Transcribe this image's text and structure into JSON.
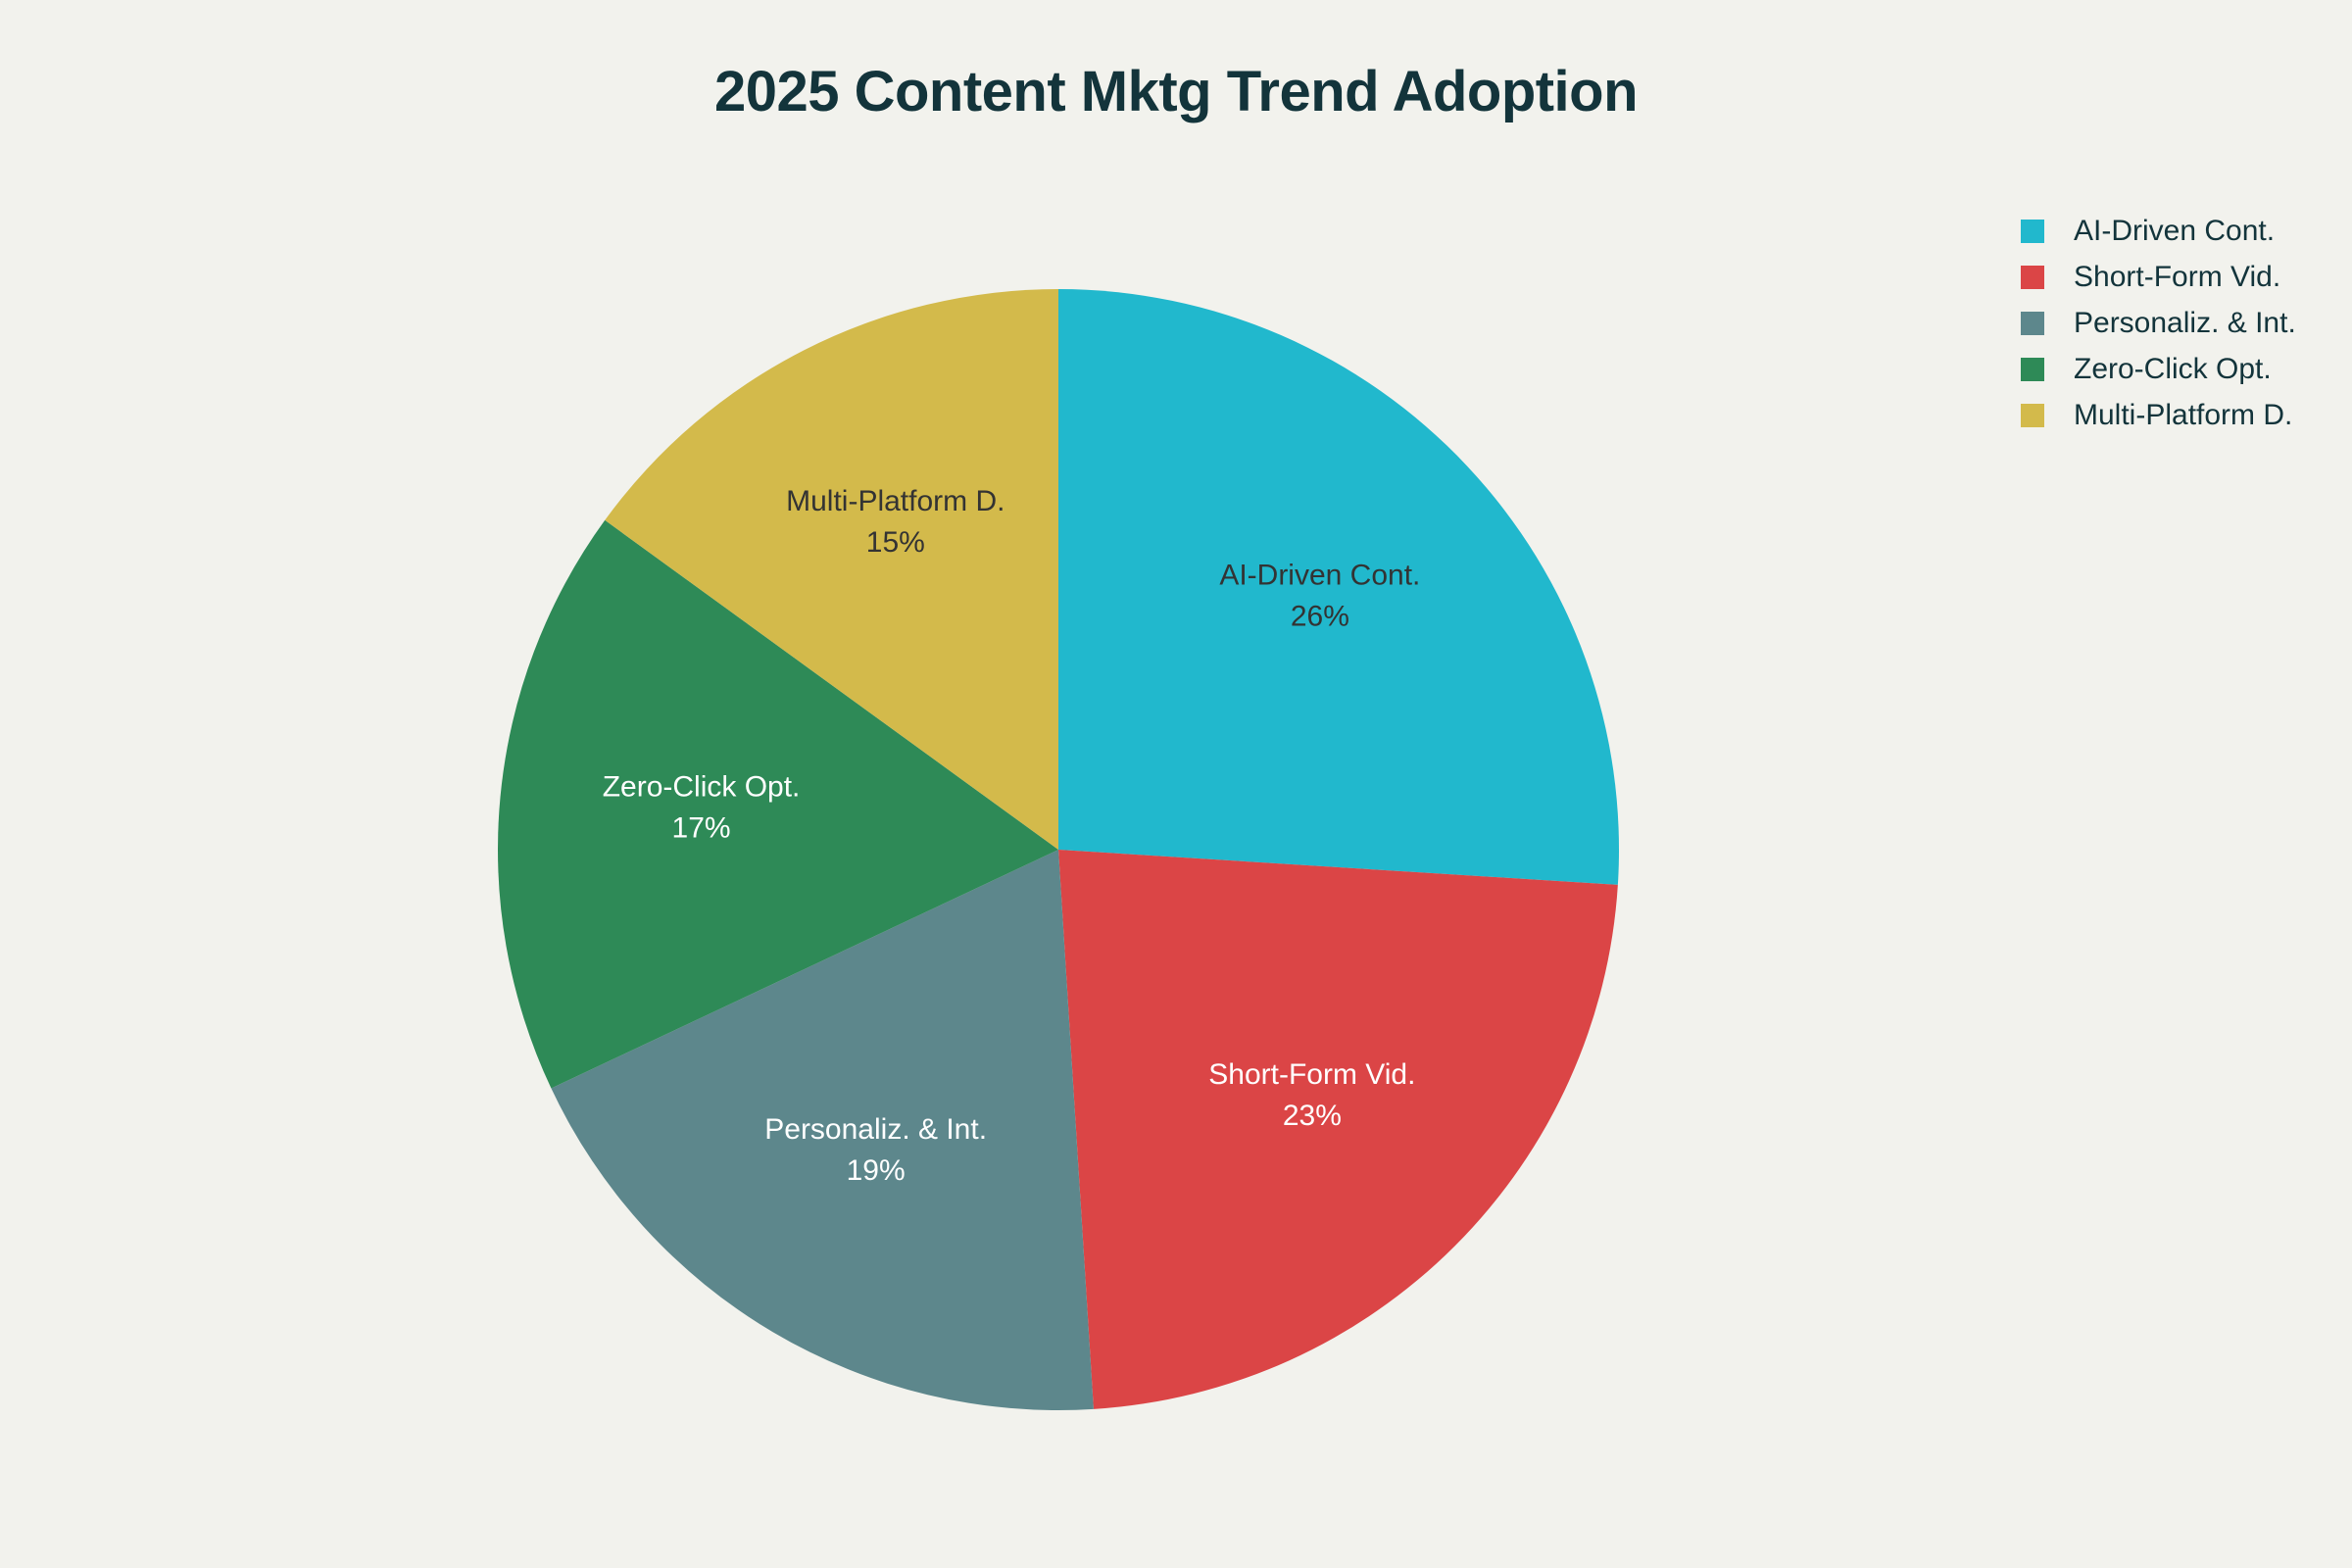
{
  "chart_data": {
    "type": "pie",
    "title": "2025 Content Mktg Trend Adoption",
    "categories": [
      "AI-Driven Cont.",
      "Short-Form Vid.",
      "Personaliz. & Int.",
      "Zero-Click Opt.",
      "Multi-Platform D."
    ],
    "values": [
      26,
      23,
      19,
      17,
      15
    ],
    "value_labels": [
      "26%",
      "23%",
      "19%",
      "17%",
      "15%"
    ],
    "colors": [
      "#21b8cd",
      "#db4546",
      "#5d878c",
      "#2e8a57",
      "#d3ba4b"
    ],
    "label_colors": [
      "#333333",
      "#ffffff",
      "#ffffff",
      "#ffffff",
      "#333333"
    ],
    "start_angle": "12 o'clock",
    "direction": "clockwise",
    "legend_position": "top-right",
    "legend": [
      "AI-Driven Cont.",
      "Personaliz. & Int.",
      "Multi-Platform D.",
      "Short-Form Vid.",
      "Zero-Click Opt."
    ]
  }
}
